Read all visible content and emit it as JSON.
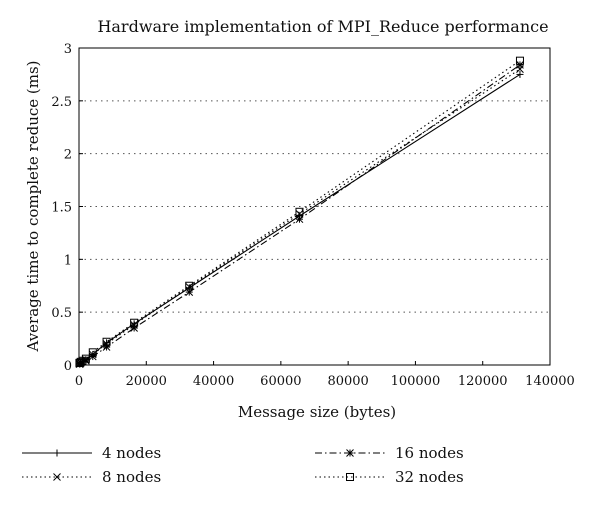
{
  "chart_data": {
    "type": "line",
    "title": "Hardware implementation of MPI_Reduce performance",
    "xlabel": "Message size (bytes)",
    "ylabel": "Average time to complete reduce (ms)",
    "xlim": [
      0,
      140000
    ],
    "ylim": [
      0,
      3
    ],
    "x_ticks": [
      0,
      20000,
      40000,
      60000,
      80000,
      100000,
      120000,
      140000
    ],
    "y_ticks": [
      0,
      0.5,
      1,
      1.5,
      2,
      2.5,
      3
    ],
    "x_tick_labels": [
      "0",
      "20000",
      "40000",
      "60000",
      "80000",
      "100000",
      "120000",
      "140000"
    ],
    "y_tick_labels": [
      "0",
      "0.5",
      "1",
      "1.5",
      "2",
      "2.5",
      "3"
    ],
    "grid": "horizontal dotted",
    "legend_position": "bottom",
    "series": [
      {
        "name": "4 nodes",
        "line_style": "solid",
        "marker": "plus",
        "x": [
          128,
          256,
          512,
          1024,
          2048,
          4096,
          8192,
          16384,
          32768,
          65536,
          131072
        ],
        "y": [
          0.01,
          0.01,
          0.02,
          0.03,
          0.05,
          0.1,
          0.21,
          0.39,
          0.73,
          1.41,
          2.75
        ]
      },
      {
        "name": "8 nodes",
        "line_style": "dotted",
        "marker": "x",
        "x": [
          128,
          256,
          512,
          1024,
          2048,
          4096,
          8192,
          16384,
          32768,
          65536,
          131072
        ],
        "y": [
          0.01,
          0.01,
          0.02,
          0.03,
          0.05,
          0.1,
          0.2,
          0.38,
          0.74,
          1.43,
          2.8
        ]
      },
      {
        "name": "16 nodes",
        "line_style": "dashdot",
        "marker": "star",
        "x": [
          128,
          256,
          512,
          1024,
          2048,
          4096,
          8192,
          16384,
          32768,
          65536,
          131072
        ],
        "y": [
          0.01,
          0.01,
          0.02,
          0.03,
          0.04,
          0.08,
          0.17,
          0.35,
          0.69,
          1.38,
          2.84
        ]
      },
      {
        "name": "32 nodes",
        "line_style": "dotted",
        "marker": "square",
        "x": [
          128,
          256,
          512,
          1024,
          2048,
          4096,
          8192,
          16384,
          32768,
          65536,
          131072
        ],
        "y": [
          0.02,
          0.02,
          0.03,
          0.04,
          0.06,
          0.12,
          0.22,
          0.4,
          0.75,
          1.45,
          2.88
        ]
      }
    ]
  }
}
